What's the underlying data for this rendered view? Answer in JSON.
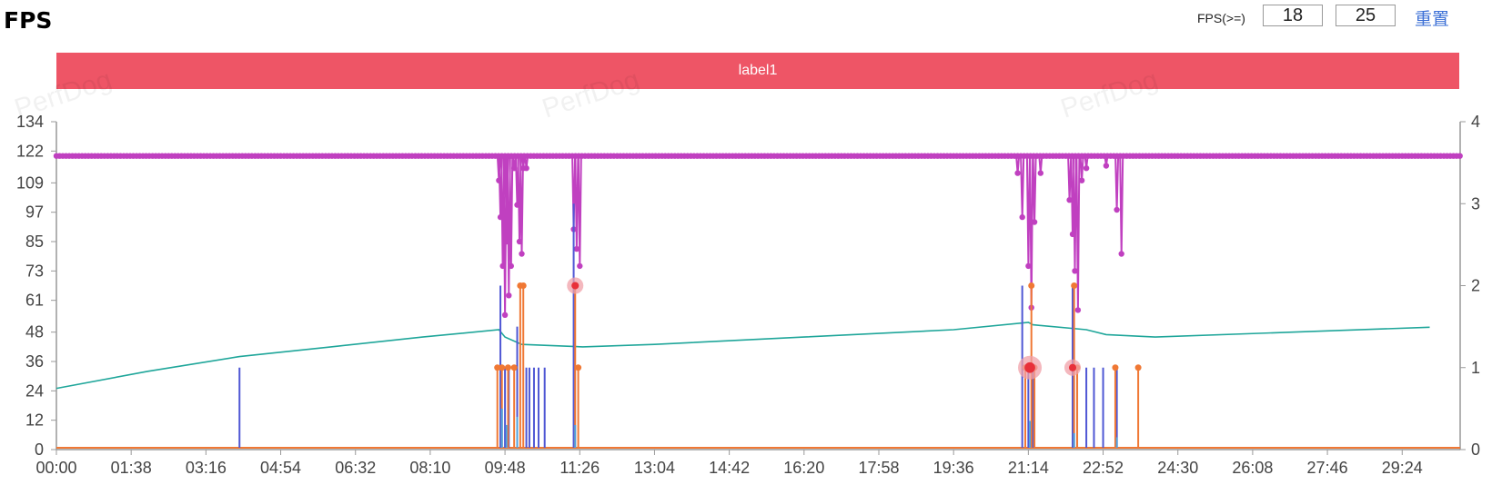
{
  "page": {
    "title": "FPS"
  },
  "fps_filter": {
    "label": "FPS(>=)",
    "low_value": "18",
    "high_value": "25",
    "reset_label": "重置"
  },
  "label_bar": {
    "text": "label1",
    "color": "#ee5566"
  },
  "watermark": "PerfDog",
  "chart_data": {
    "type": "line",
    "x": [
      "00:00",
      "01:38",
      "03:16",
      "04:54",
      "06:32",
      "08:10",
      "09:48",
      "11:26",
      "13:04",
      "14:42",
      "16:20",
      "17:58",
      "19:36",
      "21:14",
      "22:52",
      "24:30",
      "26:08",
      "27:46",
      "29:24"
    ],
    "x_domain": [
      "00:00",
      "30:40"
    ],
    "left_axis": {
      "ticks": [
        0,
        12,
        24,
        36,
        48,
        61,
        73,
        85,
        97,
        109,
        122,
        134
      ],
      "ylim": [
        0,
        134
      ]
    },
    "right_axis": {
      "ticks": [
        0,
        1,
        2,
        3,
        4
      ],
      "ylim": [
        0,
        4
      ]
    },
    "grid": false,
    "series": [
      {
        "axis": "left",
        "color": "#c040c0",
        "style": "line-with-dots",
        "baseline": 120,
        "drops": [
          {
            "t": "09:40",
            "v": 110
          },
          {
            "t": "09:42",
            "v": 95
          },
          {
            "t": "09:45",
            "v": 75
          },
          {
            "t": "09:48",
            "v": 55
          },
          {
            "t": "09:50",
            "v": 85
          },
          {
            "t": "09:53",
            "v": 63
          },
          {
            "t": "09:56",
            "v": 75
          },
          {
            "t": "10:00",
            "v": 115
          },
          {
            "t": "10:04",
            "v": 100
          },
          {
            "t": "10:07",
            "v": 85
          },
          {
            "t": "10:10",
            "v": 80
          },
          {
            "t": "10:12",
            "v": 115
          },
          {
            "t": "10:16",
            "v": 115
          },
          {
            "t": "11:18",
            "v": 90
          },
          {
            "t": "11:22",
            "v": 82
          },
          {
            "t": "11:26",
            "v": 75
          },
          {
            "t": "21:00",
            "v": 113
          },
          {
            "t": "21:06",
            "v": 95
          },
          {
            "t": "21:14",
            "v": 75
          },
          {
            "t": "21:18",
            "v": 58
          },
          {
            "t": "21:22",
            "v": 93
          },
          {
            "t": "21:30",
            "v": 113
          },
          {
            "t": "22:08",
            "v": 102
          },
          {
            "t": "22:12",
            "v": 88
          },
          {
            "t": "22:15",
            "v": 73
          },
          {
            "t": "22:19",
            "v": 57
          },
          {
            "t": "22:24",
            "v": 110
          },
          {
            "t": "22:30",
            "v": 115
          },
          {
            "t": "22:56",
            "v": 116
          },
          {
            "t": "23:10",
            "v": 98
          },
          {
            "t": "23:16",
            "v": 80
          }
        ]
      },
      {
        "axis": "left",
        "color": "#1fa69a",
        "style": "line",
        "points": [
          {
            "t": "00:00",
            "v": 25
          },
          {
            "t": "02:00",
            "v": 32
          },
          {
            "t": "04:00",
            "v": 38
          },
          {
            "t": "06:00",
            "v": 42
          },
          {
            "t": "08:00",
            "v": 46
          },
          {
            "t": "09:40",
            "v": 49
          },
          {
            "t": "09:48",
            "v": 46
          },
          {
            "t": "10:10",
            "v": 43
          },
          {
            "t": "11:30",
            "v": 42
          },
          {
            "t": "13:04",
            "v": 43
          },
          {
            "t": "16:20",
            "v": 46
          },
          {
            "t": "19:36",
            "v": 49
          },
          {
            "t": "21:14",
            "v": 52
          },
          {
            "t": "21:20",
            "v": 51
          },
          {
            "t": "22:30",
            "v": 49
          },
          {
            "t": "22:56",
            "v": 47
          },
          {
            "t": "24:00",
            "v": 46
          },
          {
            "t": "27:00",
            "v": 48
          },
          {
            "t": "30:00",
            "v": 50
          }
        ]
      },
      {
        "axis": "right",
        "color": "#4f57d4",
        "style": "spikes",
        "spikes": [
          {
            "t": "04:00",
            "v": 1.0
          },
          {
            "t": "09:42",
            "v": 2.0
          },
          {
            "t": "09:48",
            "v": 1.0
          },
          {
            "t": "09:53",
            "v": 1.0
          },
          {
            "t": "10:04",
            "v": 1.5
          },
          {
            "t": "10:16",
            "v": 1.0
          },
          {
            "t": "10:20",
            "v": 1.0
          },
          {
            "t": "10:26",
            "v": 1.0
          },
          {
            "t": "10:32",
            "v": 1.0
          },
          {
            "t": "10:40",
            "v": 1.0
          },
          {
            "t": "11:18",
            "v": 3.0
          },
          {
            "t": "21:06",
            "v": 2.0
          },
          {
            "t": "21:14",
            "v": 1.0
          },
          {
            "t": "21:20",
            "v": 1.0
          },
          {
            "t": "22:12",
            "v": 2.0
          },
          {
            "t": "22:18",
            "v": 1.0
          },
          {
            "t": "22:30",
            "v": 1.0
          },
          {
            "t": "22:40",
            "v": 1.0
          },
          {
            "t": "22:52",
            "v": 1.0
          },
          {
            "t": "23:10",
            "v": 1.0
          }
        ]
      },
      {
        "axis": "right",
        "color": "#f07834",
        "style": "spikes-with-dots",
        "spikes": [
          {
            "t": "09:38",
            "v": 1.0
          },
          {
            "t": "09:44",
            "v": 1.0
          },
          {
            "t": "09:52",
            "v": 1.0
          },
          {
            "t": "10:00",
            "v": 1.0
          },
          {
            "t": "10:08",
            "v": 2.0
          },
          {
            "t": "10:12",
            "v": 2.0
          },
          {
            "t": "11:20",
            "v": 2.0
          },
          {
            "t": "11:24",
            "v": 1.0
          },
          {
            "t": "21:10",
            "v": 1.0
          },
          {
            "t": "21:18",
            "v": 2.0
          },
          {
            "t": "21:22",
            "v": 1.0
          },
          {
            "t": "22:14",
            "v": 2.0
          },
          {
            "t": "22:18",
            "v": 1.0
          },
          {
            "t": "23:08",
            "v": 1.0
          },
          {
            "t": "23:38",
            "v": 1.0
          }
        ]
      },
      {
        "axis": "right",
        "color": "#4fa3e0",
        "style": "spikes",
        "spikes": [
          {
            "t": "09:44",
            "v": 0.5
          },
          {
            "t": "09:50",
            "v": 0.3
          },
          {
            "t": "10:04",
            "v": 0.4
          },
          {
            "t": "11:20",
            "v": 0.3
          },
          {
            "t": "21:16",
            "v": 0.35
          },
          {
            "t": "22:14",
            "v": 0.2
          },
          {
            "t": "23:10",
            "v": 0.15
          }
        ]
      }
    ],
    "highlights": [
      {
        "t": "11:20",
        "axis": "right",
        "v": 2.0,
        "size": "small"
      },
      {
        "t": "21:16",
        "axis": "right",
        "v": 1.0,
        "size": "large"
      },
      {
        "t": "22:12",
        "axis": "right",
        "v": 1.0,
        "size": "small"
      }
    ]
  }
}
